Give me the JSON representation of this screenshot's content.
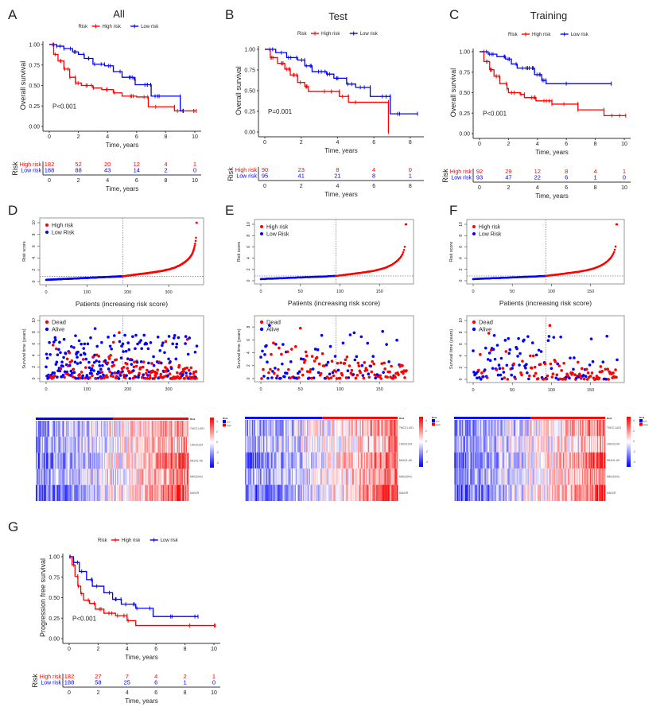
{
  "panel_letters": [
    "A",
    "B",
    "C",
    "D",
    "E",
    "F",
    "G"
  ],
  "colors": {
    "high": "#ff0000",
    "low": "#0000ff",
    "axis": "#333333",
    "box": "#999999"
  },
  "chart_data": [
    {
      "id": "A",
      "type": "line",
      "subtype": "kaplan-meier",
      "title": "All",
      "ylabel": "Overall survival",
      "xlabel": "Time, years",
      "legend": {
        "title": "Risk",
        "items": [
          "High risk",
          "Low risk"
        ],
        "position": "top"
      },
      "xlim": [
        0,
        10
      ],
      "xticks": [
        0,
        2,
        4,
        6,
        8,
        10
      ],
      "ylim": [
        0,
        1
      ],
      "yticks": [
        "0.00",
        "0.25",
        "0.50",
        "0.75",
        "1.00"
      ],
      "pvalue": "P<0.001",
      "series": [
        {
          "name": "High risk",
          "points": [
            [
              0,
              1
            ],
            [
              0.3,
              0.88
            ],
            [
              0.6,
              0.8
            ],
            [
              1,
              0.7
            ],
            [
              1.4,
              0.6
            ],
            [
              1.8,
              0.53
            ],
            [
              2.2,
              0.5
            ],
            [
              3,
              0.47
            ],
            [
              3.6,
              0.45
            ],
            [
              4.4,
              0.41
            ],
            [
              5,
              0.37
            ],
            [
              6,
              0.36
            ],
            [
              6.7,
              0.36
            ],
            [
              6.8,
              0.24
            ],
            [
              8.6,
              0.24
            ],
            [
              8.6,
              0.19
            ],
            [
              10.1,
              0.19
            ]
          ]
        },
        {
          "name": "Low risk",
          "points": [
            [
              0,
              1
            ],
            [
              0.5,
              0.98
            ],
            [
              1,
              0.95
            ],
            [
              1.6,
              0.91
            ],
            [
              2,
              0.88
            ],
            [
              2.4,
              0.83
            ],
            [
              3,
              0.76
            ],
            [
              3.8,
              0.74
            ],
            [
              4.4,
              0.67
            ],
            [
              5,
              0.6
            ],
            [
              5.8,
              0.58
            ],
            [
              5.9,
              0.51
            ],
            [
              6.9,
              0.51
            ],
            [
              7,
              0.37
            ],
            [
              8.9,
              0.37
            ],
            [
              9,
              0.19
            ],
            [
              9.2,
              0.19
            ]
          ]
        }
      ],
      "risk_table": {
        "title": "Risk",
        "times": [
          0,
          2,
          4,
          6,
          8,
          10
        ],
        "rows": [
          {
            "name": "High risk",
            "counts": [
              182,
              52,
              20,
              12,
              4,
              1
            ]
          },
          {
            "name": "Low risk",
            "counts": [
              188,
              88,
              43,
              14,
              2,
              0
            ]
          }
        ]
      }
    },
    {
      "id": "B",
      "type": "line",
      "subtype": "kaplan-meier",
      "title": "Test",
      "ylabel": "Overall survival",
      "xlabel": "Time, years",
      "legend": {
        "title": "Risk",
        "items": [
          "High risk",
          "Low risk"
        ],
        "position": "top"
      },
      "xlim": [
        0,
        8.4
      ],
      "xticks": [
        0,
        2,
        4,
        6,
        8
      ],
      "ylim": [
        0,
        1
      ],
      "yticks": [
        "0.00",
        "0.25",
        "0.50",
        "0.75",
        "1.00"
      ],
      "pvalue": "P=0.001",
      "series": [
        {
          "name": "High risk",
          "points": [
            [
              0,
              1
            ],
            [
              0.3,
              0.9
            ],
            [
              0.7,
              0.83
            ],
            [
              1.1,
              0.76
            ],
            [
              1.4,
              0.69
            ],
            [
              1.8,
              0.6
            ],
            [
              2.2,
              0.55
            ],
            [
              2.4,
              0.49
            ],
            [
              4.1,
              0.49
            ],
            [
              4.1,
              0.43
            ],
            [
              4.6,
              0.43
            ],
            [
              4.6,
              0.36
            ],
            [
              6.8,
              0.36
            ],
            [
              6.8,
              0.0
            ]
          ]
        },
        {
          "name": "Low risk",
          "points": [
            [
              0,
              1
            ],
            [
              0.6,
              0.96
            ],
            [
              1.2,
              0.9
            ],
            [
              1.8,
              0.87
            ],
            [
              2.2,
              0.8
            ],
            [
              2.6,
              0.73
            ],
            [
              3.4,
              0.7
            ],
            [
              3.8,
              0.65
            ],
            [
              4.5,
              0.64
            ],
            [
              4.5,
              0.58
            ],
            [
              5,
              0.54
            ],
            [
              5.8,
              0.54
            ],
            [
              5.8,
              0.43
            ],
            [
              6.9,
              0.43
            ],
            [
              6.9,
              0.22
            ],
            [
              8.4,
              0.22
            ]
          ]
        }
      ],
      "risk_table": {
        "title": "Risk",
        "times": [
          0,
          2,
          4,
          6,
          8
        ],
        "rows": [
          {
            "name": "High risk",
            "counts": [
              90,
              23,
              8,
              4,
              0
            ]
          },
          {
            "name": "Low risk",
            "counts": [
              95,
              41,
              21,
              8,
              1
            ]
          }
        ]
      }
    },
    {
      "id": "C",
      "type": "line",
      "subtype": "kaplan-meier",
      "title": "Training",
      "ylabel": "Overall survival",
      "xlabel": "Time, years",
      "legend": {
        "title": "Risk",
        "items": [
          "High risk",
          "Low risk"
        ],
        "position": "top"
      },
      "xlim": [
        0,
        10
      ],
      "xticks": [
        0,
        2,
        4,
        6,
        8,
        10
      ],
      "ylim": [
        0,
        1
      ],
      "yticks": [
        "0.00",
        "0.25",
        "0.50",
        "0.75",
        "1.00"
      ],
      "pvalue": "P<0.001",
      "series": [
        {
          "name": "High risk",
          "points": [
            [
              0,
              1
            ],
            [
              0.3,
              0.88
            ],
            [
              0.7,
              0.78
            ],
            [
              1,
              0.7
            ],
            [
              1.4,
              0.61
            ],
            [
              1.9,
              0.55
            ],
            [
              2,
              0.5
            ],
            [
              2.8,
              0.48
            ],
            [
              3.1,
              0.44
            ],
            [
              3.8,
              0.44
            ],
            [
              3.9,
              0.4
            ],
            [
              5,
              0.4
            ],
            [
              5,
              0.36
            ],
            [
              6.8,
              0.36
            ],
            [
              6.8,
              0.29
            ],
            [
              8.6,
              0.29
            ],
            [
              8.6,
              0.22
            ],
            [
              10.1,
              0.22
            ]
          ]
        },
        {
          "name": "Low risk",
          "points": [
            [
              0,
              1
            ],
            [
              0.6,
              0.97
            ],
            [
              1.2,
              0.94
            ],
            [
              1.8,
              0.91
            ],
            [
              2.2,
              0.85
            ],
            [
              2.6,
              0.8
            ],
            [
              3.4,
              0.8
            ],
            [
              3.8,
              0.72
            ],
            [
              4.3,
              0.65
            ],
            [
              4.6,
              0.61
            ],
            [
              9.1,
              0.61
            ]
          ]
        }
      ],
      "risk_table": {
        "title": "Risk",
        "times": [
          0,
          2,
          4,
          6,
          8,
          10
        ],
        "rows": [
          {
            "name": "High risk",
            "counts": [
              92,
              29,
              12,
              8,
              4,
              1
            ]
          },
          {
            "name": "Low risk",
            "counts": [
              93,
              47,
              22,
              6,
              1,
              0
            ]
          }
        ]
      }
    },
    {
      "id": "G",
      "type": "line",
      "subtype": "kaplan-meier",
      "title": "",
      "ylabel": "Progression free survival",
      "xlabel": "Time, years",
      "legend": {
        "title": "Risk",
        "items": [
          "High risk",
          "Low risk"
        ],
        "position": "top"
      },
      "xlim": [
        0,
        10
      ],
      "xticks": [
        0,
        2,
        4,
        6,
        8,
        10
      ],
      "ylim": [
        0,
        1
      ],
      "yticks": [
        "0.00",
        "0.25",
        "0.50",
        "0.75",
        "1.00"
      ],
      "pvalue": "P<0.001",
      "series": [
        {
          "name": "High risk",
          "points": [
            [
              0,
              1
            ],
            [
              0.2,
              0.9
            ],
            [
              0.4,
              0.76
            ],
            [
              0.6,
              0.64
            ],
            [
              0.8,
              0.55
            ],
            [
              1,
              0.47
            ],
            [
              1.4,
              0.43
            ],
            [
              1.8,
              0.36
            ],
            [
              2.4,
              0.31
            ],
            [
              3.2,
              0.28
            ],
            [
              4,
              0.28
            ],
            [
              4,
              0.22
            ],
            [
              4.6,
              0.16
            ],
            [
              10.1,
              0.16
            ]
          ]
        },
        {
          "name": "Low risk",
          "points": [
            [
              0,
              1
            ],
            [
              0.3,
              0.93
            ],
            [
              0.7,
              0.82
            ],
            [
              1.2,
              0.72
            ],
            [
              1.6,
              0.64
            ],
            [
              2.4,
              0.56
            ],
            [
              3,
              0.48
            ],
            [
              3.6,
              0.42
            ],
            [
              4.6,
              0.37
            ],
            [
              5.8,
              0.33
            ],
            [
              5.8,
              0.27
            ],
            [
              8.9,
              0.27
            ]
          ]
        }
      ],
      "risk_table": {
        "title": "Risk",
        "times": [
          0,
          2,
          4,
          6,
          8,
          10
        ],
        "rows": [
          {
            "name": "High risk",
            "counts": [
              182,
              27,
              7,
              4,
              2,
              1
            ]
          },
          {
            "name": "Low risk",
            "counts": [
              188,
              58,
              25,
              6,
              1,
              0
            ]
          }
        ]
      }
    },
    {
      "id": "D-risk",
      "type": "scatter",
      "n": 370,
      "cutoff_index": 188,
      "cutoff_score": 0.9,
      "xlabel": "Patients (increasing risk score)",
      "ylabel": "Risk score",
      "xticks": [
        0,
        100,
        200,
        300
      ],
      "yticks": [
        0,
        2,
        4,
        6,
        8,
        10
      ],
      "ylim": [
        0,
        10
      ],
      "legend": [
        "High risk",
        "Low Risk"
      ],
      "legend_position": "top-left"
    },
    {
      "id": "E-risk",
      "type": "scatter",
      "n": 185,
      "cutoff_index": 95,
      "cutoff_score": 0.85,
      "xlabel": "Patients (increasing risk score)",
      "ylabel": "Risk score",
      "xticks": [
        0,
        50,
        100,
        150
      ],
      "yticks": [
        0,
        2,
        4,
        6,
        8,
        10
      ],
      "ylim": [
        0,
        10
      ],
      "legend": [
        "High risk",
        "Low Risk"
      ],
      "legend_position": "top-left"
    },
    {
      "id": "F-risk",
      "type": "scatter",
      "n": 185,
      "cutoff_index": 93,
      "cutoff_score": 0.85,
      "xlabel": "Patients (increasing risk score)",
      "ylabel": "Risk score",
      "xticks": [
        0,
        50,
        100,
        150
      ],
      "yticks": [
        0,
        2,
        4,
        6,
        8,
        10
      ],
      "ylim": [
        0,
        10
      ],
      "legend": [
        "High risk",
        "Low Risk"
      ],
      "legend_position": "top-left"
    },
    {
      "id": "D-status",
      "type": "scatter",
      "n": 370,
      "cutoff_index": 188,
      "ylabel": "Survival time (years)",
      "xticks": [
        0,
        100,
        200,
        300
      ],
      "yticks": [
        0,
        2,
        4,
        6,
        8,
        10
      ],
      "ylim": [
        0,
        10
      ],
      "legend": [
        "Dead",
        "Alive"
      ],
      "legend_position": "top-left"
    },
    {
      "id": "E-status",
      "type": "scatter",
      "n": 185,
      "cutoff_index": 95,
      "ylabel": "Survival time (years)",
      "xticks": [
        0,
        50,
        100,
        150
      ],
      "yticks": [
        0,
        2,
        4,
        6,
        8
      ],
      "ylim": [
        0,
        9
      ],
      "legend": [
        "Dead",
        "Alive"
      ],
      "legend_position": "top-left"
    },
    {
      "id": "F-status",
      "type": "scatter",
      "n": 185,
      "cutoff_index": 93,
      "ylabel": "Survival time (years)",
      "xticks": [
        0,
        50,
        100,
        150
      ],
      "yticks": [
        0,
        2,
        4,
        6,
        8,
        10
      ],
      "ylim": [
        0,
        10
      ],
      "legend": [
        "Dead",
        "Alive"
      ],
      "legend_position": "top-left"
    },
    {
      "id": "heatmaps",
      "type": "heatmap",
      "rows": [
        "TMCC1-AS1",
        "LINC01224",
        "MKLN1-AS",
        "MIR210HG",
        "DANCR"
      ],
      "annotation": {
        "title": "Risk",
        "levels": [
          "low",
          "high"
        ]
      },
      "color_scale": {
        "ticks": [
          "4",
          "2",
          "0",
          "-2",
          "-4"
        ],
        "min": -4,
        "max": 4
      }
    }
  ]
}
